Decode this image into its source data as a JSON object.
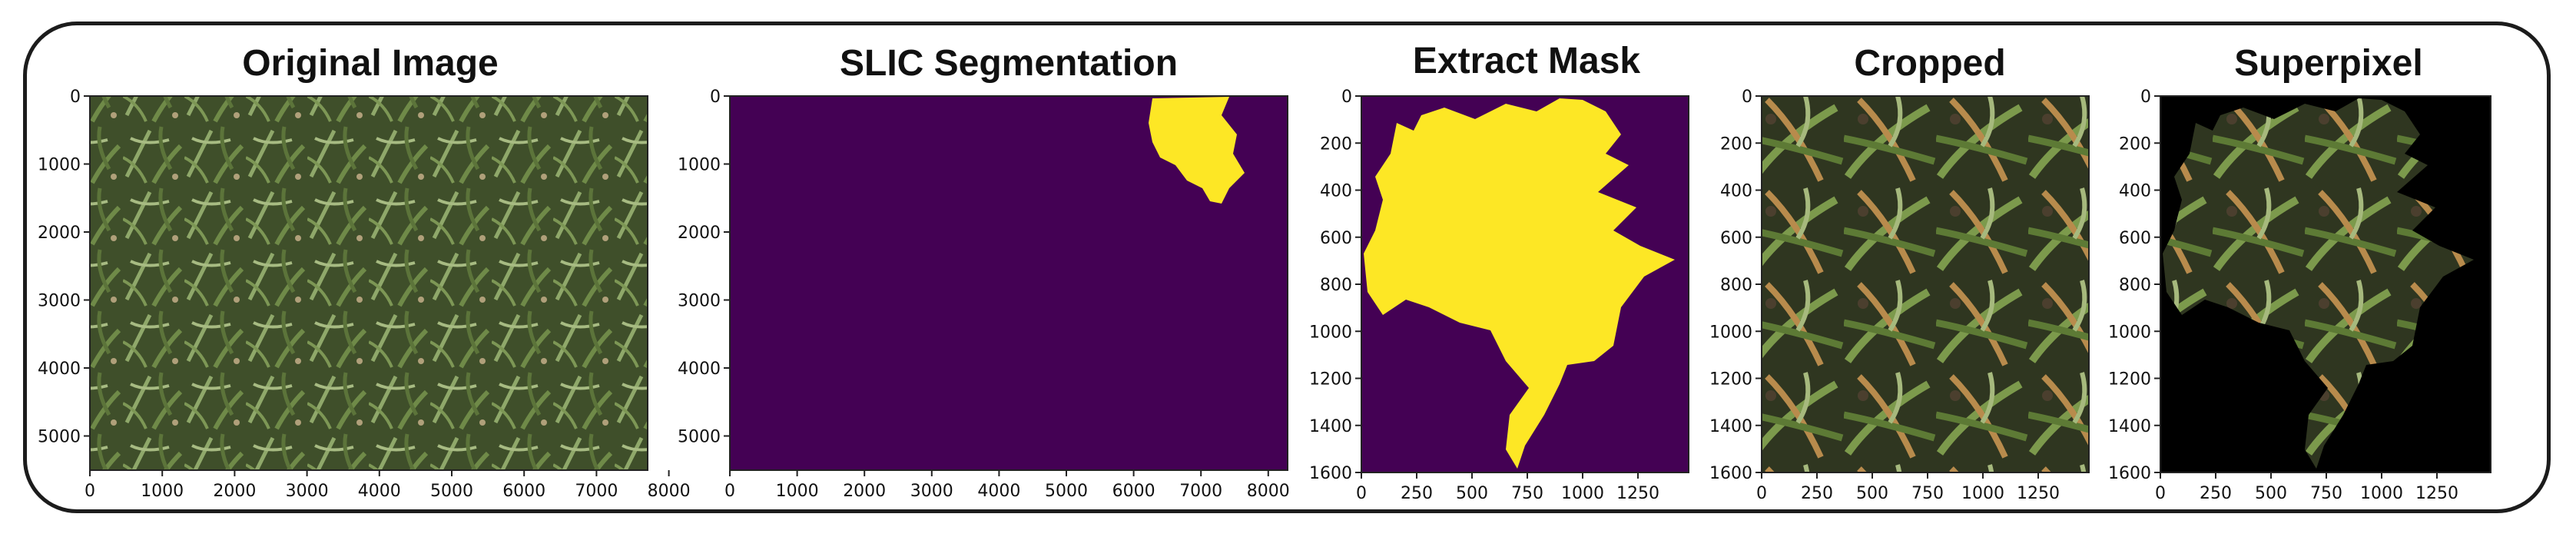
{
  "figure": {
    "panels": [
      {
        "id": "original",
        "title": "Original Image",
        "image_kind": "field-photo",
        "x_ticks": [
          "0",
          "1000",
          "2000",
          "3000",
          "4000",
          "5000",
          "6000",
          "7000",
          "8000"
        ],
        "y_ticks": [
          "0",
          "1000",
          "2000",
          "3000",
          "4000",
          "5000"
        ]
      },
      {
        "id": "slic",
        "title": "SLIC Segmentation",
        "image_kind": "mask-small",
        "x_ticks": [
          "0",
          "1000",
          "2000",
          "3000",
          "4000",
          "5000",
          "6000",
          "7000",
          "8000"
        ],
        "y_ticks": [
          "0",
          "1000",
          "2000",
          "3000",
          "4000",
          "5000"
        ]
      },
      {
        "id": "mask",
        "title": "Extract Mask",
        "image_kind": "mask-large",
        "x_ticks": [
          "0",
          "250",
          "500",
          "750",
          "1000",
          "1250"
        ],
        "y_ticks": [
          "0",
          "200",
          "400",
          "600",
          "800",
          "1000",
          "1200",
          "1400",
          "1600"
        ]
      },
      {
        "id": "cropped",
        "title": "Cropped",
        "image_kind": "crop-photo",
        "x_ticks": [
          "0",
          "250",
          "500",
          "750",
          "1000",
          "1250"
        ],
        "y_ticks": [
          "0",
          "200",
          "400",
          "600",
          "800",
          "1000",
          "1200",
          "1400",
          "1600"
        ]
      },
      {
        "id": "superpixel",
        "title": "Superpixel",
        "image_kind": "superpixel-photo",
        "x_ticks": [
          "0",
          "250",
          "500",
          "750",
          "1000",
          "1250"
        ],
        "y_ticks": [
          "0",
          "200",
          "400",
          "600",
          "800",
          "1000",
          "1200",
          "1400",
          "1600"
        ]
      }
    ],
    "colors": {
      "mask_background": "#440154",
      "mask_foreground": "#fde725",
      "plant_dark": "#2f3b1c",
      "plant_mid": "#5f7a3a",
      "plant_light": "#9bb075",
      "plant_dry": "#b8894a",
      "soil": "#4a3f30",
      "frame": "#1c1c1c"
    }
  }
}
